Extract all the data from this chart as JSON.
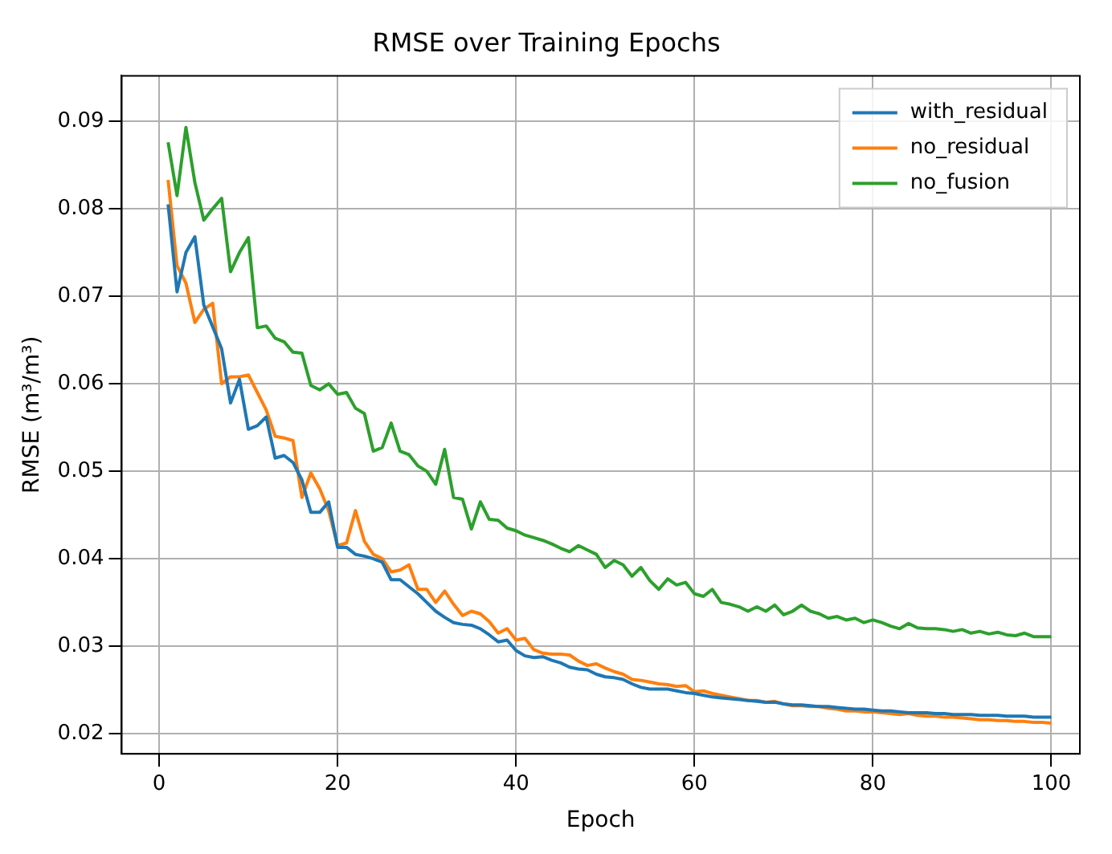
{
  "chart_data": {
    "type": "line",
    "title": "RMSE over Training Epochs",
    "xlabel": "Epoch",
    "ylabel": "RMSE (m³/m³)",
    "x": [
      1,
      2,
      3,
      4,
      5,
      6,
      7,
      8,
      9,
      10,
      11,
      12,
      13,
      14,
      15,
      16,
      17,
      18,
      19,
      20,
      21,
      22,
      23,
      24,
      25,
      26,
      27,
      28,
      29,
      30,
      31,
      32,
      33,
      34,
      35,
      36,
      37,
      38,
      39,
      40,
      41,
      42,
      43,
      44,
      45,
      46,
      47,
      48,
      49,
      50,
      51,
      52,
      53,
      54,
      55,
      56,
      57,
      58,
      59,
      60,
      61,
      62,
      63,
      64,
      65,
      66,
      67,
      68,
      69,
      70,
      71,
      72,
      73,
      74,
      75,
      76,
      77,
      78,
      79,
      80,
      81,
      82,
      83,
      84,
      85,
      86,
      87,
      88,
      89,
      90,
      91,
      92,
      93,
      94,
      95,
      96,
      97,
      98,
      99,
      100
    ],
    "series": [
      {
        "name": "with_residual",
        "color": "#1f77b4",
        "values": [
          0.0805,
          0.0705,
          0.075,
          0.0768,
          0.069,
          0.0665,
          0.064,
          0.0578,
          0.0605,
          0.0548,
          0.0552,
          0.0562,
          0.0515,
          0.0518,
          0.051,
          0.049,
          0.0453,
          0.0453,
          0.0465,
          0.0413,
          0.0413,
          0.0405,
          0.0403,
          0.04,
          0.0396,
          0.0376,
          0.0376,
          0.0368,
          0.036,
          0.035,
          0.034,
          0.0333,
          0.0327,
          0.0325,
          0.0324,
          0.032,
          0.0313,
          0.0305,
          0.0307,
          0.0295,
          0.0289,
          0.0287,
          0.0288,
          0.0284,
          0.0281,
          0.0276,
          0.0274,
          0.0273,
          0.0268,
          0.0265,
          0.0264,
          0.0262,
          0.0257,
          0.0253,
          0.0251,
          0.0251,
          0.0251,
          0.0249,
          0.0247,
          0.0246,
          0.0244,
          0.0242,
          0.0241,
          0.024,
          0.0239,
          0.0238,
          0.0237,
          0.0236,
          0.0236,
          0.0234,
          0.0233,
          0.0233,
          0.0232,
          0.0231,
          0.0231,
          0.023,
          0.0229,
          0.0228,
          0.0228,
          0.0227,
          0.0226,
          0.0226,
          0.0225,
          0.0224,
          0.0224,
          0.0224,
          0.0223,
          0.0223,
          0.0222,
          0.0222,
          0.0222,
          0.0221,
          0.0221,
          0.0221,
          0.022,
          0.022,
          0.022,
          0.0219,
          0.0219,
          0.0219
        ]
      },
      {
        "name": "no_residual",
        "color": "#ff7f0e",
        "values": [
          0.0833,
          0.0735,
          0.0715,
          0.067,
          0.0685,
          0.0692,
          0.06,
          0.0608,
          0.0608,
          0.061,
          0.059,
          0.057,
          0.054,
          0.0538,
          0.0535,
          0.047,
          0.0498,
          0.048,
          0.0455,
          0.0415,
          0.0418,
          0.0455,
          0.042,
          0.0405,
          0.04,
          0.0385,
          0.0387,
          0.0393,
          0.0365,
          0.0365,
          0.035,
          0.0363,
          0.0348,
          0.0335,
          0.034,
          0.0337,
          0.0328,
          0.0315,
          0.032,
          0.0307,
          0.0309,
          0.0296,
          0.0292,
          0.0291,
          0.0291,
          0.029,
          0.0283,
          0.0278,
          0.028,
          0.0275,
          0.0271,
          0.0268,
          0.0262,
          0.0261,
          0.0259,
          0.0257,
          0.0256,
          0.0254,
          0.0255,
          0.0248,
          0.0249,
          0.0246,
          0.0244,
          0.0242,
          0.024,
          0.0238,
          0.0238,
          0.0236,
          0.0237,
          0.0234,
          0.0232,
          0.0232,
          0.0231,
          0.0231,
          0.0229,
          0.0228,
          0.0226,
          0.0226,
          0.0225,
          0.0225,
          0.0224,
          0.0223,
          0.0222,
          0.0223,
          0.0221,
          0.022,
          0.022,
          0.0219,
          0.0219,
          0.0218,
          0.0217,
          0.0216,
          0.0216,
          0.0215,
          0.0215,
          0.0214,
          0.0214,
          0.0213,
          0.0213,
          0.0212
        ]
      },
      {
        "name": "no_fusion",
        "color": "#2ca02c",
        "values": [
          0.0876,
          0.0815,
          0.0893,
          0.083,
          0.0787,
          0.08,
          0.0812,
          0.0728,
          0.075,
          0.0767,
          0.0664,
          0.0666,
          0.0652,
          0.0648,
          0.0636,
          0.0635,
          0.0598,
          0.0593,
          0.06,
          0.0588,
          0.059,
          0.0572,
          0.0566,
          0.0523,
          0.0527,
          0.0555,
          0.0523,
          0.0519,
          0.0506,
          0.05,
          0.0485,
          0.0525,
          0.047,
          0.0468,
          0.0434,
          0.0465,
          0.0445,
          0.0444,
          0.0435,
          0.0432,
          0.0427,
          0.0424,
          0.0421,
          0.0417,
          0.0412,
          0.0408,
          0.0415,
          0.041,
          0.0405,
          0.039,
          0.0398,
          0.0393,
          0.038,
          0.039,
          0.0375,
          0.0365,
          0.0377,
          0.037,
          0.0373,
          0.036,
          0.0357,
          0.0365,
          0.035,
          0.0348,
          0.0345,
          0.034,
          0.0345,
          0.034,
          0.0347,
          0.0336,
          0.034,
          0.0347,
          0.034,
          0.0337,
          0.0332,
          0.0334,
          0.033,
          0.0332,
          0.0327,
          0.033,
          0.0327,
          0.0323,
          0.032,
          0.0326,
          0.0321,
          0.032,
          0.032,
          0.0319,
          0.0317,
          0.0319,
          0.0315,
          0.0317,
          0.0314,
          0.0316,
          0.0313,
          0.0312,
          0.0315,
          0.0311,
          0.0311,
          0.0311
        ]
      }
    ],
    "xlim": [
      -4.2,
      103.2
    ],
    "xticks": [
      0,
      20,
      40,
      60,
      80,
      100
    ],
    "ylim": [
      0.0177,
      0.0952
    ],
    "yticks": [
      0.02,
      0.03,
      0.04,
      0.05,
      0.06,
      0.07,
      0.08,
      0.09
    ],
    "grid": true,
    "legend": "top right",
    "marker": "none",
    "line_style": "solid"
  }
}
